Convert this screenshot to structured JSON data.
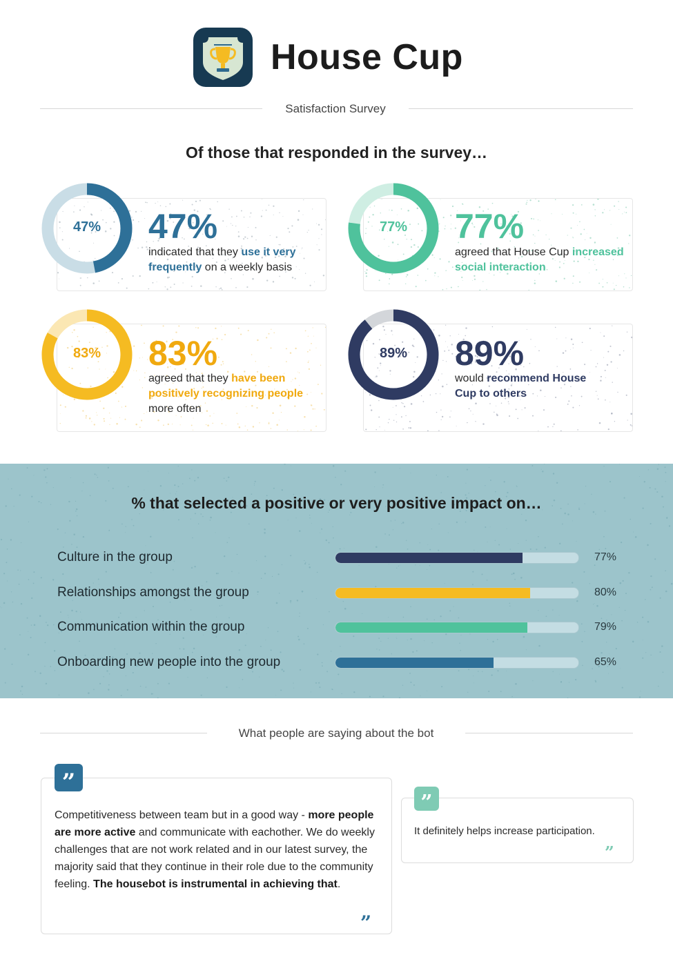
{
  "header": {
    "app_name": "House Cup",
    "logo_icon": "trophy-shield-icon",
    "subtitle": "Satisfaction Survey"
  },
  "colors": {
    "blue": "#2e7098",
    "teal": "#4fc29c",
    "yellow": "#f5bb22",
    "navy": "#2f3b62",
    "band": "#9cc4cb"
  },
  "survey": {
    "heading": "Of those that responded in the survey…",
    "stats": [
      {
        "value": 47,
        "donut_label": "47%",
        "big_label": "47%",
        "desc_before": "indicated that they ",
        "desc_highlight": "use it very frequently",
        "desc_after": " on a weekly basis"
      },
      {
        "value": 77,
        "donut_label": "77%",
        "big_label": "77%",
        "desc_before": "agreed that House Cup ",
        "desc_highlight": "increased social interaction",
        "desc_after": ""
      },
      {
        "value": 83,
        "donut_label": "83%",
        "big_label": "83%",
        "desc_before": "agreed that they ",
        "desc_highlight": "have been positively recognizing people",
        "desc_after": " more often"
      },
      {
        "value": 89,
        "donut_label": "89%",
        "big_label": "89%",
        "desc_before": "would ",
        "desc_highlight": "recommend House Cup to others",
        "desc_after": ""
      }
    ]
  },
  "impact": {
    "heading": "% that selected a positive or very positive impact on…",
    "items": [
      {
        "label": "Culture in the group",
        "value": 77,
        "pct": "77%"
      },
      {
        "label": "Relationships amongst the group",
        "value": 80,
        "pct": "80%"
      },
      {
        "label": "Communication within the group",
        "value": 79,
        "pct": "79%"
      },
      {
        "label": "Onboarding new people into the group",
        "value": 65,
        "pct": "65%"
      }
    ]
  },
  "quotes": {
    "heading": "What people are saying about the bot",
    "open_mark": "”",
    "close_mark": "”",
    "q1": {
      "p1": "Competitiveness between team but in a good way - ",
      "b1": "more people are more active",
      "p2": " and communicate with eachother. We do weekly challenges that are not work related and in our latest survey, the majority said that they continue in their role due to the community feeling. ",
      "b2": "The housebot is instrumental in achieving that",
      "p3": "."
    },
    "q2": {
      "text": "It definitely helps increase participation."
    }
  }
}
